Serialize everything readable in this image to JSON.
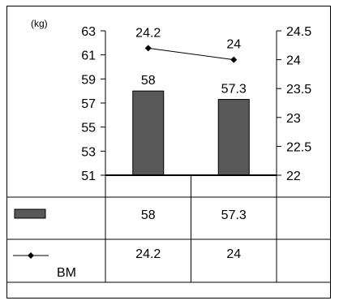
{
  "chart_data": {
    "type": "bar",
    "unit_label": "(kg)",
    "categories": [
      "",
      ""
    ],
    "series": [
      {
        "name": "",
        "kind": "bar",
        "axis": "left",
        "color": "#595959",
        "values": [
          58,
          57.3
        ],
        "labels": [
          "58",
          "57.3"
        ]
      },
      {
        "name": "BM",
        "kind": "line",
        "axis": "right",
        "color": "#000000",
        "marker": "diamond",
        "values": [
          24.2,
          24
        ],
        "labels": [
          "24.2",
          "24"
        ]
      }
    ],
    "y_left": {
      "ylim": [
        51,
        63
      ],
      "ticks": [
        51,
        53,
        55,
        57,
        59,
        61,
        63
      ],
      "tick_labels": [
        "51",
        "53",
        "55",
        "57",
        "59",
        "61",
        "63"
      ]
    },
    "y_right": {
      "ylim": [
        22,
        24.5
      ],
      "ticks": [
        22,
        22.5,
        23,
        23.5,
        24,
        24.5
      ],
      "tick_labels": [
        "22",
        "22.5",
        "23",
        "23.5",
        "24",
        "24.5"
      ]
    },
    "grid": false,
    "data_table": {
      "rows": [
        {
          "legend": "",
          "values": [
            "58",
            "57.3"
          ]
        },
        {
          "legend": "BM",
          "values": [
            "24.2",
            "24"
          ]
        }
      ]
    }
  }
}
